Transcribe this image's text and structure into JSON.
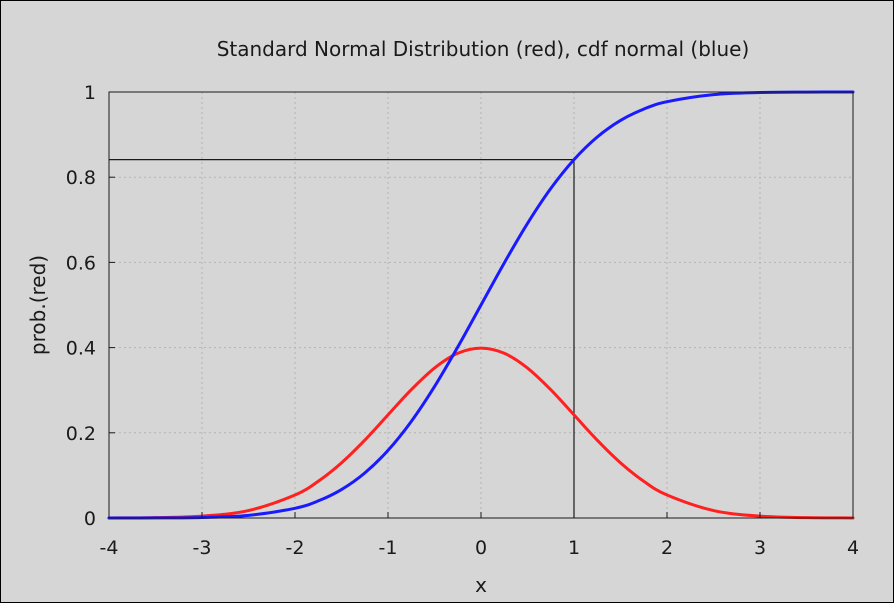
{
  "chart_data": {
    "type": "line",
    "title": "Standard Normal Distribution (red), cdf normal (blue)",
    "xlabel": "x",
    "ylabel": "prob.(red)",
    "xlim": [
      -4,
      4
    ],
    "ylim": [
      0,
      1
    ],
    "x_ticks": [
      "-4",
      "-3",
      "-2",
      "-1",
      "0",
      "1",
      "2",
      "3",
      "4"
    ],
    "y_ticks": [
      "0",
      "0.2",
      "0.4",
      "0.6",
      "0.8",
      "1"
    ],
    "grid": true,
    "legend": "none",
    "background": "#d6d6d6",
    "series": [
      {
        "color": "#ff2020",
        "x": [
          -4,
          -3.5,
          -3,
          -2.5,
          -2,
          -1.75,
          -1.5,
          -1.25,
          -1,
          -0.75,
          -0.5,
          -0.25,
          0,
          0.25,
          0.5,
          0.75,
          1,
          1.25,
          1.5,
          1.75,
          2,
          2.5,
          3,
          3.5,
          4
        ],
        "y": [
          0.0001,
          0.0009,
          0.0044,
          0.0175,
          0.054,
          0.0863,
          0.1295,
          0.1826,
          0.242,
          0.3011,
          0.3521,
          0.3867,
          0.3989,
          0.3867,
          0.3521,
          0.3011,
          0.242,
          0.1826,
          0.1295,
          0.0863,
          0.054,
          0.0175,
          0.0044,
          0.0009,
          0.0001
        ]
      },
      {
        "color": "#1a1aff",
        "x": [
          -4,
          -3.5,
          -3,
          -2.5,
          -2,
          -1.75,
          -1.5,
          -1.25,
          -1,
          -0.75,
          -0.5,
          -0.25,
          0,
          0.25,
          0.5,
          0.75,
          1,
          1.25,
          1.5,
          1.75,
          2,
          2.5,
          3,
          3.5,
          4
        ],
        "y": [
          0.0,
          0.0002,
          0.0013,
          0.0062,
          0.0228,
          0.0401,
          0.0668,
          0.1056,
          0.1587,
          0.2266,
          0.3085,
          0.4013,
          0.5,
          0.5987,
          0.6915,
          0.7734,
          0.8413,
          0.8944,
          0.9332,
          0.9599,
          0.9772,
          0.9938,
          0.9987,
          0.9998,
          1.0
        ]
      }
    ],
    "reference_lines": [
      {
        "x": 1,
        "y": 0.8413,
        "color": "#1a1a1a"
      }
    ]
  }
}
